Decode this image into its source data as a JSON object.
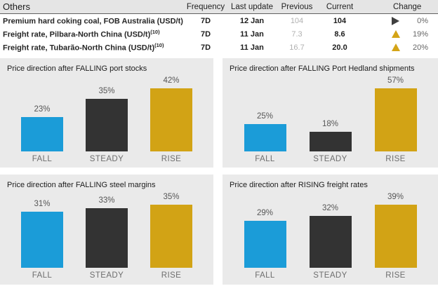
{
  "table": {
    "title": "Others",
    "columns": {
      "frequency": "Frequency",
      "last_update": "Last update",
      "previous": "Previous",
      "current": "Current",
      "change": "Change"
    },
    "rows": [
      {
        "name": "Premium hard coking coal, FOB Australia (USD/t)",
        "note": "",
        "frequency": "7D",
        "last_update": "12 Jan",
        "previous": "104",
        "current": "104",
        "direction": "steady",
        "change": "0%"
      },
      {
        "name": "Freight rate, Pilbara-North China (USD/t)",
        "note": "(10)",
        "frequency": "7D",
        "last_update": "11 Jan",
        "previous": "7.3",
        "current": "8.6",
        "direction": "up",
        "change": "19%"
      },
      {
        "name": "Freight rate, Tubarão-North China (USD/t)",
        "note": "(10)",
        "frequency": "7D",
        "last_update": "11 Jan",
        "previous": "16.7",
        "current": "20.0",
        "direction": "up",
        "change": "20%"
      }
    ]
  },
  "colors": {
    "fall": "#1b9cd8",
    "steady": "#333333",
    "rise": "#d2a315",
    "change_up": "#d4a417",
    "change_steady": "#3f3f3f",
    "panel_bg": "#eaeaea",
    "header_bg": "#e5e5e5"
  },
  "chart_data": [
    {
      "type": "bar",
      "title": "Price direction after FALLING port stocks",
      "categories": [
        "FALL",
        "STEADY",
        "RISE"
      ],
      "values": [
        23,
        35,
        42
      ],
      "value_suffix": "%",
      "xlabel": "",
      "ylabel": "",
      "grid": false,
      "legend": false
    },
    {
      "type": "bar",
      "title": "Price direction after FALLING Port Hedland shipments",
      "categories": [
        "FALL",
        "STEADY",
        "RISE"
      ],
      "values": [
        25,
        18,
        57
      ],
      "value_suffix": "%",
      "xlabel": "",
      "ylabel": "",
      "grid": false,
      "legend": false
    },
    {
      "type": "bar",
      "title": "Price direction after FALLING steel margins",
      "categories": [
        "FALL",
        "STEADY",
        "RISE"
      ],
      "values": [
        31,
        33,
        35
      ],
      "value_suffix": "%",
      "xlabel": "",
      "ylabel": "",
      "grid": false,
      "legend": false
    },
    {
      "type": "bar",
      "title": "Price direction after RISING freight rates",
      "categories": [
        "FALL",
        "STEADY",
        "RISE"
      ],
      "values": [
        29,
        32,
        39
      ],
      "value_suffix": "%",
      "xlabel": "",
      "ylabel": "",
      "grid": false,
      "legend": false
    }
  ]
}
